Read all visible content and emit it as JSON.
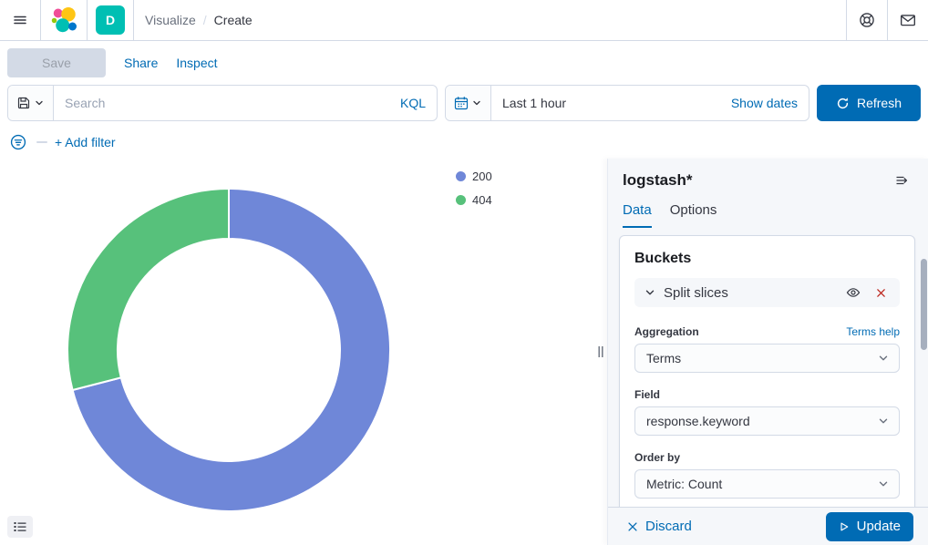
{
  "header": {
    "breadcrumbs": [
      {
        "label": "Visualize"
      },
      {
        "label": "Create"
      }
    ],
    "separator": "/",
    "space_initial": "D"
  },
  "actions": {
    "save": "Save",
    "share": "Share",
    "inspect": "Inspect"
  },
  "querybar": {
    "search_placeholder": "Search",
    "language": "KQL"
  },
  "timepicker": {
    "value": "Last 1 hour",
    "show_dates": "Show dates",
    "refresh": "Refresh"
  },
  "filterbar": {
    "add_filter": "+ Add filter"
  },
  "chart_data": {
    "type": "pie",
    "subtype": "donut",
    "title": "",
    "slices": [
      {
        "label": "200",
        "percent": 71,
        "color": "#6F87D8"
      },
      {
        "label": "404",
        "percent": 29,
        "color": "#57C17B"
      }
    ],
    "legend_position": "top-right",
    "start_angle": "top",
    "direction": "clockwise",
    "inner_radius_ratio": 0.69
  },
  "editor": {
    "index_pattern": "logstash*",
    "tabs": [
      {
        "label": "Data"
      },
      {
        "label": "Options"
      }
    ],
    "buckets": {
      "heading": "Buckets",
      "agg_group": {
        "title": "Split slices",
        "fields": [
          {
            "label": "Aggregation",
            "value": "Terms",
            "link": "Terms help"
          },
          {
            "label": "Field",
            "value": "response.keyword"
          },
          {
            "label": "Order by",
            "value": "Metric: Count"
          }
        ]
      }
    },
    "footer": {
      "discard": "Discard",
      "update": "Update"
    }
  },
  "icons": [
    "menu-icon",
    "elastic-logo",
    "help-icon",
    "mail-icon",
    "save-disk-icon",
    "chevron-down-icon",
    "calendar-icon",
    "refresh-icon",
    "filter-circle-icon",
    "list-legend-icon",
    "resize-handle-icon",
    "collapse-panel-icon",
    "eye-icon",
    "remove-x-icon",
    "discard-x-icon",
    "play-icon"
  ],
  "colors": {
    "primary": "#006BB4",
    "danger": "#BD271E",
    "border": "#D3DAE6",
    "panel_bg": "#F5F7FA",
    "text": "#343741",
    "subdued": "#69707D",
    "avatar_bg": "#00BFB3"
  }
}
